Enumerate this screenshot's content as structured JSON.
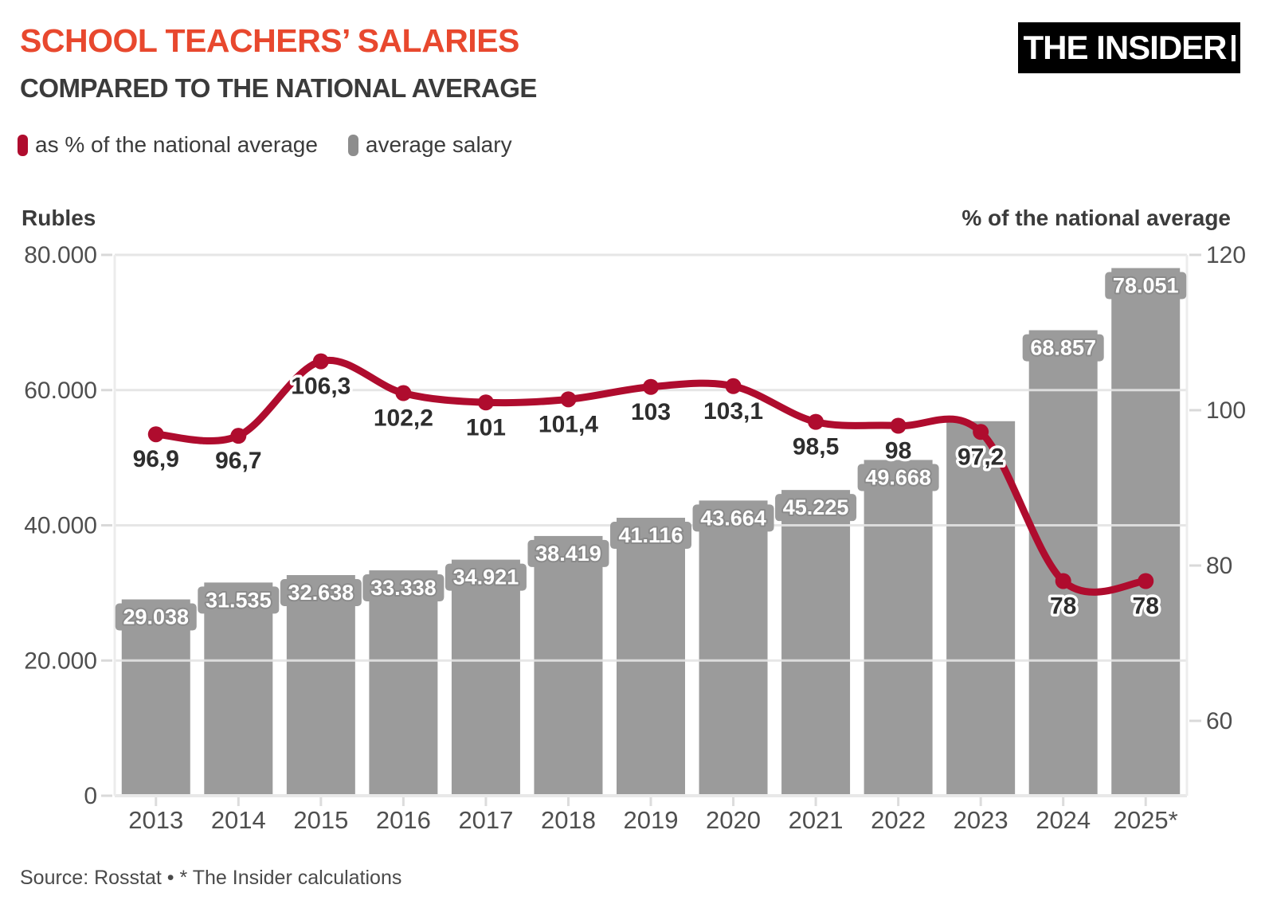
{
  "header": {
    "title": "SCHOOL TEACHERS’ SALARIES",
    "subtitle": "COMPARED TO THE NATIONAL AVERAGE",
    "logo_text": "THE INSIDER"
  },
  "legend": {
    "items": [
      {
        "label": "as % of the national average",
        "color": "#AF0C2E"
      },
      {
        "label": "average salary",
        "color": "#8D8D8D"
      }
    ]
  },
  "footer": {
    "source": "Source: Rosstat • * The Insider calculations"
  },
  "colors": {
    "title_red": "#E8482E",
    "line_red": "#AF0C2E",
    "bar_gray": "#9B9B9B",
    "text_dark": "#2E2E2E",
    "axis_text": "#4F4F4F",
    "grid": "#E4E4E4",
    "tick": "#D9D9D9"
  },
  "chart_data": {
    "type": "combo bar+line",
    "categories": [
      "2013",
      "2014",
      "2015",
      "2016",
      "2017",
      "2018",
      "2019",
      "2020",
      "2021",
      "2022",
      "2023",
      "2024",
      "2025*"
    ],
    "series": [
      {
        "name": "average salary",
        "type": "bar",
        "axis": "left",
        "values": [
          29038,
          31535,
          32638,
          33338,
          34921,
          38419,
          41116,
          43664,
          45225,
          49668,
          55400,
          68857,
          78051
        ],
        "labels": [
          "29.038",
          "31.535",
          "32.638",
          "33.338",
          "34.921",
          "38.419",
          "41.116",
          "43.664",
          "45.225",
          "49.668",
          null,
          "68.857",
          "78.051"
        ]
      },
      {
        "name": "as % of the national average",
        "type": "line",
        "axis": "right",
        "values": [
          96.9,
          96.7,
          106.3,
          102.2,
          101,
          101.4,
          103,
          103.1,
          98.5,
          98,
          97.2,
          78,
          78
        ],
        "labels": [
          "96,9",
          "96,7",
          "106,3",
          "102,2",
          "101",
          "101,4",
          "103",
          "103,1",
          "98,5",
          "98",
          "97,2",
          "78",
          "78"
        ]
      }
    ],
    "left_axis": {
      "title": "Rubles",
      "min": 0,
      "max": 80000,
      "tick_values": [
        0,
        20000,
        40000,
        60000,
        80000
      ],
      "tick_labels": [
        "0",
        "20.000",
        "40.000",
        "60.000",
        "80.000"
      ]
    },
    "right_axis": {
      "title": "% of the national average",
      "top": 120,
      "tick_values": [
        120,
        100,
        80,
        60
      ],
      "tick_labels": [
        "120",
        "100",
        "80",
        "60"
      ]
    },
    "grid": "horizontal only, at left-axis ticks",
    "legend_position": "top-left"
  }
}
